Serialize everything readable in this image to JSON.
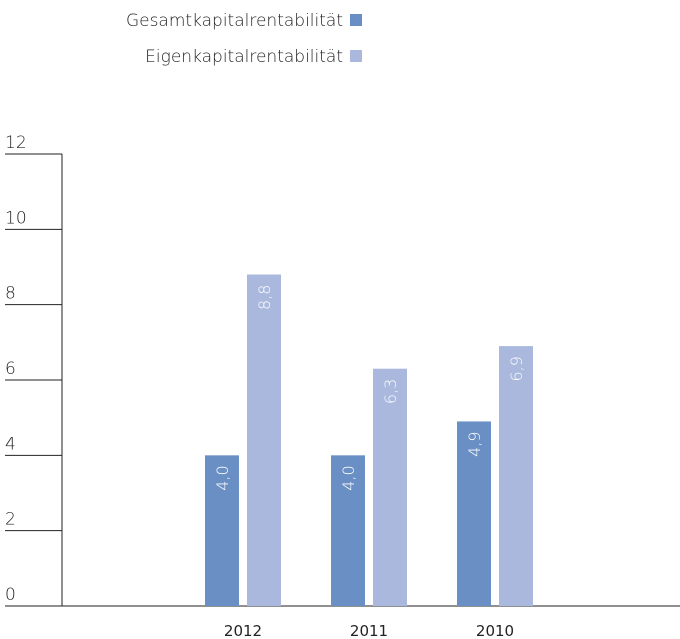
{
  "chart_data": {
    "type": "bar",
    "categories": [
      "2012",
      "2011",
      "2010"
    ],
    "series": [
      {
        "name": "Gesamtkapitalrentabilität",
        "color": "#6a8fc4",
        "values": [
          4.0,
          4.0,
          4.9
        ],
        "value_labels": [
          "4,0",
          "4,0",
          "4,9"
        ]
      },
      {
        "name": "Eigenkapitalrentabilität",
        "color": "#a9b8dc",
        "values": [
          8.8,
          6.3,
          6.9
        ],
        "value_labels": [
          "8,8",
          "6,3",
          "6,9"
        ]
      }
    ],
    "ylim": [
      0,
      12
    ],
    "yticks": [
      0,
      2,
      4,
      6,
      8,
      10,
      12
    ],
    "legend": "top-right"
  }
}
